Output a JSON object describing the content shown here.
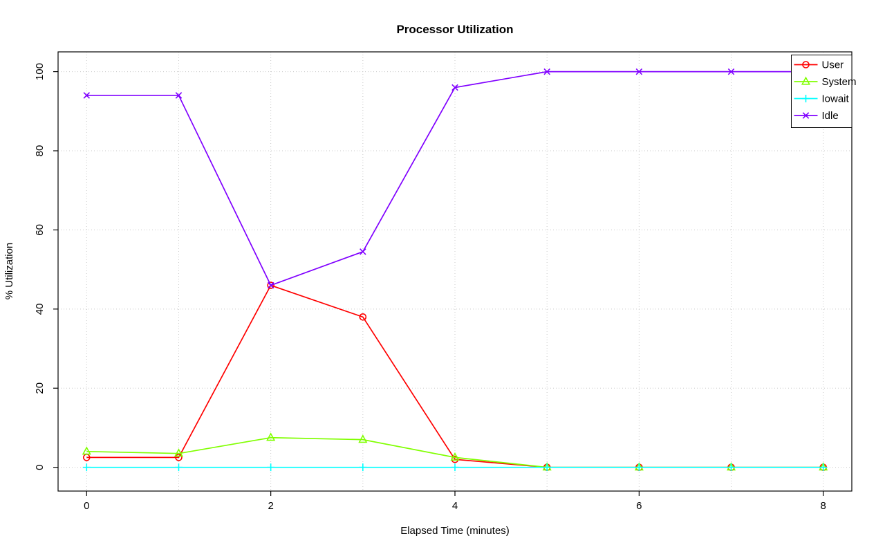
{
  "chart_data": {
    "type": "line",
    "title": "Processor Utilization",
    "xlabel": "Elapsed Time (minutes)",
    "ylabel": "% Utilization",
    "x": [
      0,
      1,
      2,
      3,
      4,
      5,
      6,
      7,
      8
    ],
    "xlim": [
      -0.31,
      8.31
    ],
    "ylim": [
      -6,
      105
    ],
    "xticks": [
      0,
      2,
      4,
      6,
      8
    ],
    "yticks": [
      0,
      20,
      40,
      60,
      80,
      100
    ],
    "xgrid": [
      0,
      1,
      2,
      3,
      4,
      5,
      6,
      7,
      8
    ],
    "ygrid": [
      0,
      20,
      40,
      60,
      80,
      100
    ],
    "grid": true,
    "grid_color": "#c8c8c8",
    "legend_position": "top-right",
    "series": [
      {
        "name": "User",
        "color": "#FF0000",
        "marker": "circle",
        "values": [
          2.5,
          2.5,
          46,
          38,
          2,
          0,
          0,
          0,
          0
        ]
      },
      {
        "name": "System",
        "color": "#80FF00",
        "marker": "triangle",
        "values": [
          4,
          3.5,
          7.5,
          7,
          2.5,
          0,
          0,
          0,
          0
        ]
      },
      {
        "name": "Iowait",
        "color": "#00FFFF",
        "marker": "plus",
        "values": [
          0,
          0,
          0,
          0,
          0,
          0,
          0,
          0,
          0
        ]
      },
      {
        "name": "Idle",
        "color": "#8000FF",
        "marker": "x",
        "values": [
          94,
          94,
          46,
          54.5,
          96,
          100,
          100,
          100,
          100
        ]
      }
    ],
    "legend": [
      "User",
      "System",
      "Iowait",
      "Idle"
    ]
  }
}
